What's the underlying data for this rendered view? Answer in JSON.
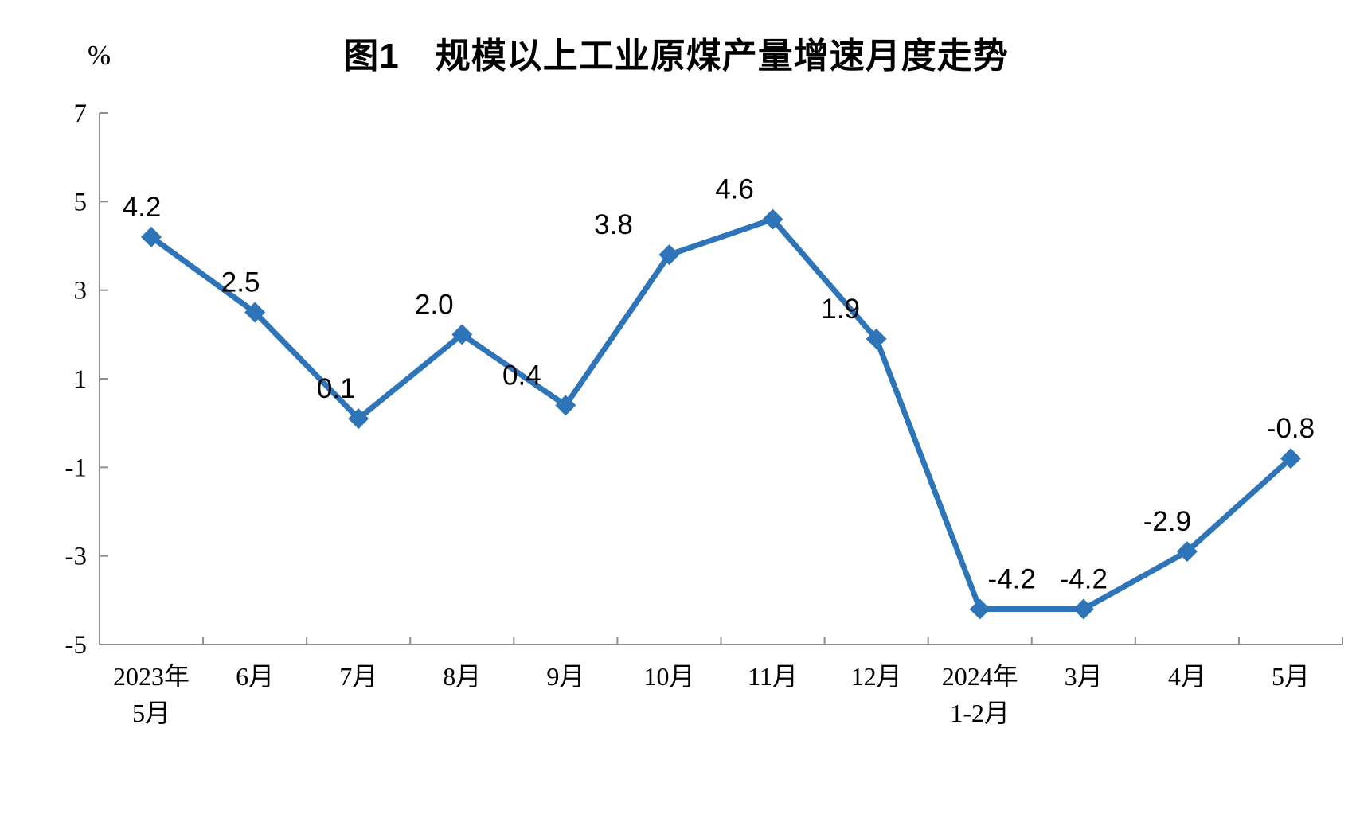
{
  "chart": {
    "title": "图1　规模以上工业原煤产量增速月度走势",
    "y_unit_label": "%"
  },
  "chart_data": {
    "type": "line",
    "title": "图1　规模以上工业原煤产量增速月度走势",
    "ylabel": "%",
    "xlabel": "",
    "categories": [
      "2023年|5月",
      "6月",
      "7月",
      "8月",
      "9月",
      "10月",
      "11月",
      "12月",
      "2024年|1-2月",
      "3月",
      "4月",
      "5月"
    ],
    "values": [
      4.2,
      2.5,
      0.1,
      2.0,
      0.4,
      3.8,
      4.6,
      1.9,
      -4.2,
      -4.2,
      -2.9,
      -0.8
    ],
    "data_labels": [
      "4.2",
      "2.5",
      "0.1",
      "2.0",
      "0.4",
      "3.8",
      "4.6",
      "1.9",
      "-4.2",
      "-4.2",
      "-2.9",
      "-0.8"
    ],
    "ylim": [
      -5,
      7
    ],
    "yticks": [
      7,
      5,
      3,
      1,
      -1,
      -3,
      -5
    ],
    "grid": false,
    "legend_position": "none",
    "marker": "diamond",
    "line_color": "#2E74B8",
    "axis_color": "#8F8F8F",
    "text_color": "#000000",
    "label_dx": [
      -12,
      -18,
      -28,
      -35,
      -55,
      -70,
      -48,
      -45,
      40,
      0,
      -25,
      0
    ]
  }
}
